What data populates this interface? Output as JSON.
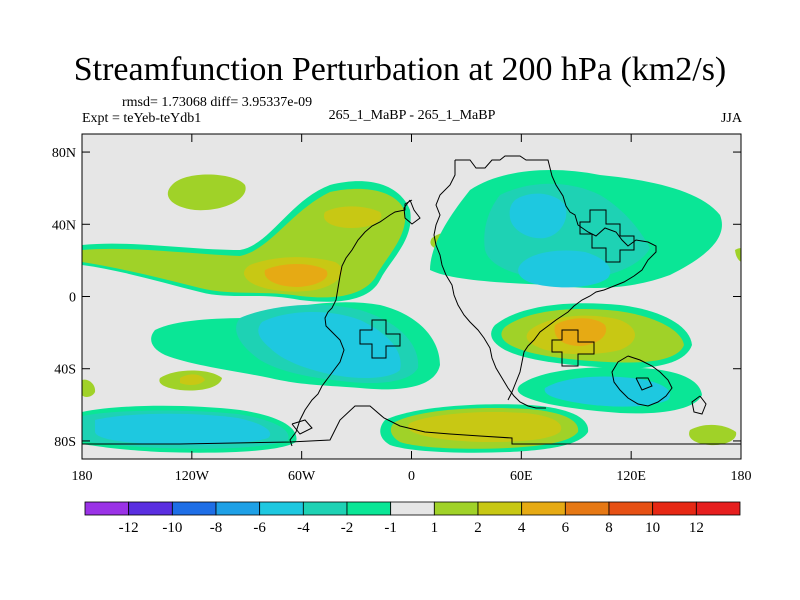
{
  "header": {
    "title": "Streamfunction Perturbation at 200 hPa (km2/s)",
    "stats": "rmsd= 1.73068 diff= 3.95337e-09",
    "experiment": "Expt = teYeb-teYdb1",
    "center_label": "265_1_MaBP - 265_1_MaBP",
    "season": "JJA"
  },
  "chart_data": {
    "type": "heatmap",
    "title": "Streamfunction Perturbation at 200 hPa (km2/s)",
    "x_axis": {
      "range": [
        -180,
        180
      ],
      "ticks": [
        -180,
        -120,
        -60,
        0,
        60,
        120,
        180
      ],
      "tick_labels": [
        "180",
        "120W",
        "60W",
        "0",
        "60E",
        "120E",
        "180"
      ]
    },
    "y_axis": {
      "range": [
        -90,
        90
      ],
      "ticks": [
        80,
        40,
        0,
        -40,
        -80
      ],
      "tick_labels": [
        "80N",
        "40N",
        "0",
        "40S",
        "80S"
      ]
    },
    "colorbar": {
      "levels": [
        -12,
        -10,
        -8,
        -6,
        -4,
        -2,
        -1,
        1,
        2,
        4,
        6,
        8,
        10,
        12
      ],
      "labels": [
        "-12",
        "-10",
        "-8",
        "-6",
        "-4",
        "-2",
        "-1",
        "1",
        "2",
        "4",
        "6",
        "8",
        "10",
        "12"
      ],
      "colors": [
        "#9a32e6",
        "#5a2ee0",
        "#1e6ee6",
        "#1ea0e6",
        "#1ec8e0",
        "#1ed2b4",
        "#0ae696",
        "#e6e6e6",
        "#a0d228",
        "#c8c814",
        "#e6aa14",
        "#e67814",
        "#e65014",
        "#e62814",
        "#e61e1e"
      ]
    },
    "regions": [
      {
        "sign": "positive",
        "level": 2,
        "lon": [
          -180,
          -60
        ],
        "lat": [
          15,
          35
        ]
      },
      {
        "sign": "positive",
        "level": 4,
        "lon": [
          -80,
          -30
        ],
        "lat": [
          20,
          30
        ]
      },
      {
        "sign": "positive",
        "level": 6,
        "lon": [
          -75,
          -45
        ],
        "lat": [
          10,
          20
        ]
      },
      {
        "sign": "negative",
        "level": -2,
        "lon": [
          -100,
          -20
        ],
        "lat": [
          -50,
          -5
        ]
      },
      {
        "sign": "negative",
        "level": -4,
        "lon": [
          -90,
          -30
        ],
        "lat": [
          -45,
          -10
        ]
      },
      {
        "sign": "negative",
        "level": -2,
        "lon": [
          40,
          140
        ],
        "lat": [
          10,
          65
        ]
      },
      {
        "sign": "negative",
        "level": -4,
        "lon": [
          50,
          100
        ],
        "lat": [
          10,
          45
        ]
      },
      {
        "sign": "positive",
        "level": 4,
        "lon": [
          55,
          130
        ],
        "lat": [
          -40,
          -10
        ]
      },
      {
        "sign": "positive",
        "level": 6,
        "lon": [
          85,
          105
        ],
        "lat": [
          -30,
          -15
        ]
      },
      {
        "sign": "negative",
        "level": -2,
        "lon": [
          -170,
          -100
        ],
        "lat": [
          -80,
          -60
        ]
      },
      {
        "sign": "positive",
        "level": 2,
        "lon": [
          -15,
          85
        ],
        "lat": [
          -85,
          -60
        ]
      },
      {
        "sign": "negative",
        "level": -4,
        "lon": [
          100,
          150
        ],
        "lat": [
          -60,
          -45
        ]
      }
    ]
  }
}
